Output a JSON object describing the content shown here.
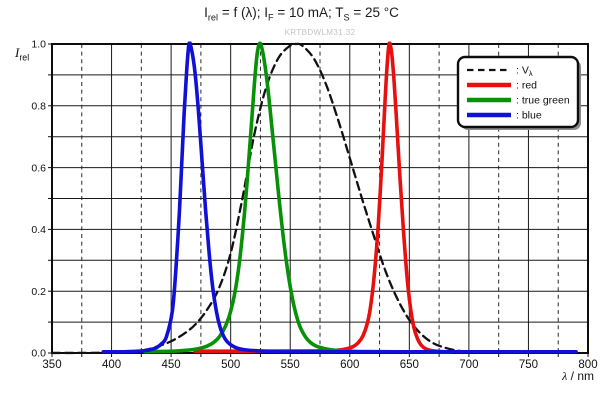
{
  "title_segments": [
    {
      "t": "I"
    },
    {
      "sub": "rel"
    },
    {
      "t": " = f (λ); I"
    },
    {
      "sub": "F"
    },
    {
      "t": " = 10 mA; T"
    },
    {
      "sub": "S"
    },
    {
      "t": " = 25 °C"
    }
  ],
  "watermark": "KRTBDWLM31.32",
  "chart_data": {
    "type": "line",
    "title": "Irel = f (λ); IF = 10 mA; TS = 25 °C",
    "x_axis": {
      "title_segments": [
        {
          "t": "λ",
          "italic": true
        },
        {
          "t": " / nm"
        }
      ],
      "min": 350,
      "max": 800,
      "major_step": 50,
      "minor_step": 25,
      "tick_labels": [
        "350",
        "400",
        "450",
        "500",
        "550",
        "600",
        "650",
        "700",
        "750",
        "800"
      ],
      "grid": "solid at 50 nm, dashed at 25 nm"
    },
    "y_axis": {
      "title_segments": [
        {
          "t": "I",
          "italic": true
        },
        {
          "sub": "rel"
        }
      ],
      "min": 0,
      "max": 1,
      "grid_step": 0.1,
      "label_step": 0.2,
      "tick_labels": [
        "0.0",
        "0.2",
        "0.4",
        "0.6",
        "0.8",
        "1.0"
      ],
      "grid": "solid at 0.1"
    },
    "legend": {
      "position": "top-right",
      "border_color": "#0d0d0d",
      "shadow_color": "#8c8c8c"
    },
    "colors": {
      "v_lambda": "#111111",
      "red": "#e8100f",
      "true_green": "#079107",
      "blue": "#1010d6",
      "grid": "#1a1a1a",
      "frame": "#0d0d0d"
    },
    "series": [
      {
        "id": "v-lambda",
        "name": "Vλ",
        "legend_segments": [
          {
            "t": ": V"
          },
          {
            "sub": "λ"
          }
        ],
        "color": "#111111",
        "style": "dashed",
        "stroke_width": 2.3,
        "peak_nm": 555,
        "points": [
          [
            350,
            0.0002
          ],
          [
            380,
            0.0004
          ],
          [
            400,
            0.001
          ],
          [
            410,
            0.002
          ],
          [
            420,
            0.004
          ],
          [
            430,
            0.0116
          ],
          [
            440,
            0.023
          ],
          [
            450,
            0.038
          ],
          [
            460,
            0.06
          ],
          [
            470,
            0.091
          ],
          [
            480,
            0.139
          ],
          [
            490,
            0.208
          ],
          [
            500,
            0.323
          ],
          [
            510,
            0.503
          ],
          [
            520,
            0.71
          ],
          [
            530,
            0.862
          ],
          [
            540,
            0.954
          ],
          [
            550,
            0.995
          ],
          [
            555,
            1.0
          ],
          [
            560,
            0.995
          ],
          [
            570,
            0.952
          ],
          [
            580,
            0.87
          ],
          [
            590,
            0.757
          ],
          [
            600,
            0.631
          ],
          [
            610,
            0.503
          ],
          [
            620,
            0.381
          ],
          [
            630,
            0.265
          ],
          [
            640,
            0.175
          ],
          [
            650,
            0.107
          ],
          [
            660,
            0.061
          ],
          [
            670,
            0.032
          ],
          [
            680,
            0.017
          ],
          [
            690,
            0.008
          ],
          [
            700,
            0.004
          ],
          [
            715,
            0.002
          ],
          [
            735,
            0.001
          ],
          [
            760,
            0.0006
          ],
          [
            780,
            0.0004
          ]
        ]
      },
      {
        "id": "red",
        "name": "red",
        "legend_segments": [
          {
            "t": ": red"
          }
        ],
        "color": "#e8100f",
        "style": "solid",
        "stroke_width": 3.6,
        "peak_nm": 633,
        "points": [
          [
            470,
            0.006
          ],
          [
            520,
            0.006
          ],
          [
            560,
            0.0065
          ],
          [
            575,
            0.007
          ],
          [
            585,
            0.008
          ],
          [
            592,
            0.01
          ],
          [
            598,
            0.014
          ],
          [
            603,
            0.021
          ],
          [
            607,
            0.033
          ],
          [
            611,
            0.055
          ],
          [
            615,
            0.1
          ],
          [
            618,
            0.165
          ],
          [
            621,
            0.27
          ],
          [
            624,
            0.42
          ],
          [
            627,
            0.62
          ],
          [
            629,
            0.77
          ],
          [
            631,
            0.91
          ],
          [
            633,
            1.0
          ],
          [
            635,
            0.975
          ],
          [
            637,
            0.89
          ],
          [
            639,
            0.77
          ],
          [
            642,
            0.575
          ],
          [
            645,
            0.4
          ],
          [
            648,
            0.25
          ],
          [
            651,
            0.145
          ],
          [
            654,
            0.08
          ],
          [
            657,
            0.045
          ],
          [
            660,
            0.025
          ],
          [
            664,
            0.013
          ],
          [
            669,
            0.0075
          ],
          [
            675,
            0.005
          ],
          [
            680,
            0.004
          ]
        ]
      },
      {
        "id": "true-green",
        "name": "true green",
        "legend_segments": [
          {
            "t": ": true green"
          }
        ],
        "color": "#079107",
        "style": "solid",
        "stroke_width": 3.6,
        "peak_nm": 524,
        "points": [
          [
            428,
            0.004
          ],
          [
            442,
            0.005
          ],
          [
            452,
            0.006
          ],
          [
            460,
            0.008
          ],
          [
            468,
            0.011
          ],
          [
            474,
            0.015
          ],
          [
            480,
            0.022
          ],
          [
            486,
            0.035
          ],
          [
            491,
            0.055
          ],
          [
            496,
            0.09
          ],
          [
            500,
            0.135
          ],
          [
            504,
            0.205
          ],
          [
            508,
            0.315
          ],
          [
            512,
            0.47
          ],
          [
            515,
            0.615
          ],
          [
            518,
            0.77
          ],
          [
            520,
            0.875
          ],
          [
            522,
            0.96
          ],
          [
            524,
            1.0
          ],
          [
            526,
            0.99
          ],
          [
            529,
            0.925
          ],
          [
            532,
            0.83
          ],
          [
            535,
            0.715
          ],
          [
            538,
            0.6
          ],
          [
            541,
            0.485
          ],
          [
            544,
            0.38
          ],
          [
            547,
            0.29
          ],
          [
            550,
            0.215
          ],
          [
            553,
            0.155
          ],
          [
            556,
            0.11
          ],
          [
            559,
            0.078
          ],
          [
            563,
            0.051
          ],
          [
            567,
            0.034
          ],
          [
            571,
            0.024
          ],
          [
            576,
            0.017
          ],
          [
            581,
            0.0125
          ],
          [
            587,
            0.009
          ],
          [
            594,
            0.007
          ],
          [
            602,
            0.0055
          ],
          [
            615,
            0.0045
          ],
          [
            640,
            0.004
          ],
          [
            685,
            0.0035
          ]
        ]
      },
      {
        "id": "blue",
        "name": "blue",
        "legend_segments": [
          {
            "t": ": blue"
          }
        ],
        "color": "#1010d6",
        "style": "solid",
        "stroke_width": 3.6,
        "peak_nm": 465,
        "points": [
          [
            393,
            0.004
          ],
          [
            405,
            0.004
          ],
          [
            415,
            0.0045
          ],
          [
            423,
            0.006
          ],
          [
            429,
            0.008
          ],
          [
            434,
            0.012
          ],
          [
            438,
            0.018
          ],
          [
            442,
            0.03
          ],
          [
            446,
            0.052
          ],
          [
            451,
            0.135
          ],
          [
            454,
            0.27
          ],
          [
            457,
            0.46
          ],
          [
            459,
            0.62
          ],
          [
            461,
            0.78
          ],
          [
            463,
            0.91
          ],
          [
            465,
            1.0
          ],
          [
            467,
            0.985
          ],
          [
            470,
            0.91
          ],
          [
            473,
            0.78
          ],
          [
            476,
            0.62
          ],
          [
            479,
            0.46
          ],
          [
            482,
            0.32
          ],
          [
            485,
            0.21
          ],
          [
            488,
            0.135
          ],
          [
            491,
            0.085
          ],
          [
            494,
            0.055
          ],
          [
            497,
            0.037
          ],
          [
            501,
            0.024
          ],
          [
            506,
            0.015
          ],
          [
            511,
            0.011
          ],
          [
            519,
            0.008
          ],
          [
            529,
            0.006
          ],
          [
            546,
            0.005
          ],
          [
            580,
            0.004
          ],
          [
            650,
            0.004
          ],
          [
            720,
            0.004
          ],
          [
            790,
            0.004
          ]
        ]
      }
    ]
  }
}
